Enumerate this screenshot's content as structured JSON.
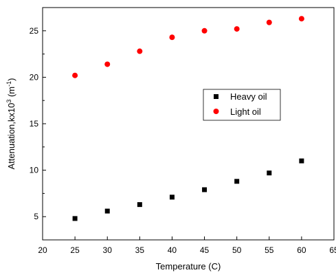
{
  "chart_data": {
    "type": "scatter",
    "xlabel": "Temperature (C)",
    "ylabel": {
      "prefix": "Attenuation,kx10",
      "sup1": "3",
      "middle": " (m",
      "sup2": "-1",
      "suffix": ")"
    },
    "xlim": [
      20,
      65
    ],
    "ylim": [
      2.5,
      27.5
    ],
    "xticks": [
      20,
      25,
      30,
      35,
      40,
      45,
      50,
      55,
      60,
      65
    ],
    "xtick_labels": [
      "20",
      "25",
      "30",
      "35",
      "40",
      "45",
      "50",
      "55",
      "60",
      "65"
    ],
    "yticks": [
      5,
      10,
      15,
      20,
      25
    ],
    "ytick_labels": [
      "5",
      "10",
      "15",
      "20",
      "25"
    ],
    "legend_position": "center-right",
    "series": [
      {
        "name": "Heavy oil",
        "marker": "square",
        "color": "#000000",
        "x": [
          25,
          30,
          35,
          40,
          45,
          50,
          55,
          60
        ],
        "y": [
          4.8,
          5.6,
          6.3,
          7.1,
          7.9,
          8.8,
          9.7,
          11.0
        ]
      },
      {
        "name": "Light oil",
        "marker": "circle",
        "color": "#ff0000",
        "x": [
          25,
          30,
          35,
          40,
          45,
          50,
          55,
          60
        ],
        "y": [
          20.2,
          21.4,
          22.8,
          24.3,
          25.0,
          25.2,
          25.9,
          26.3
        ]
      }
    ]
  }
}
